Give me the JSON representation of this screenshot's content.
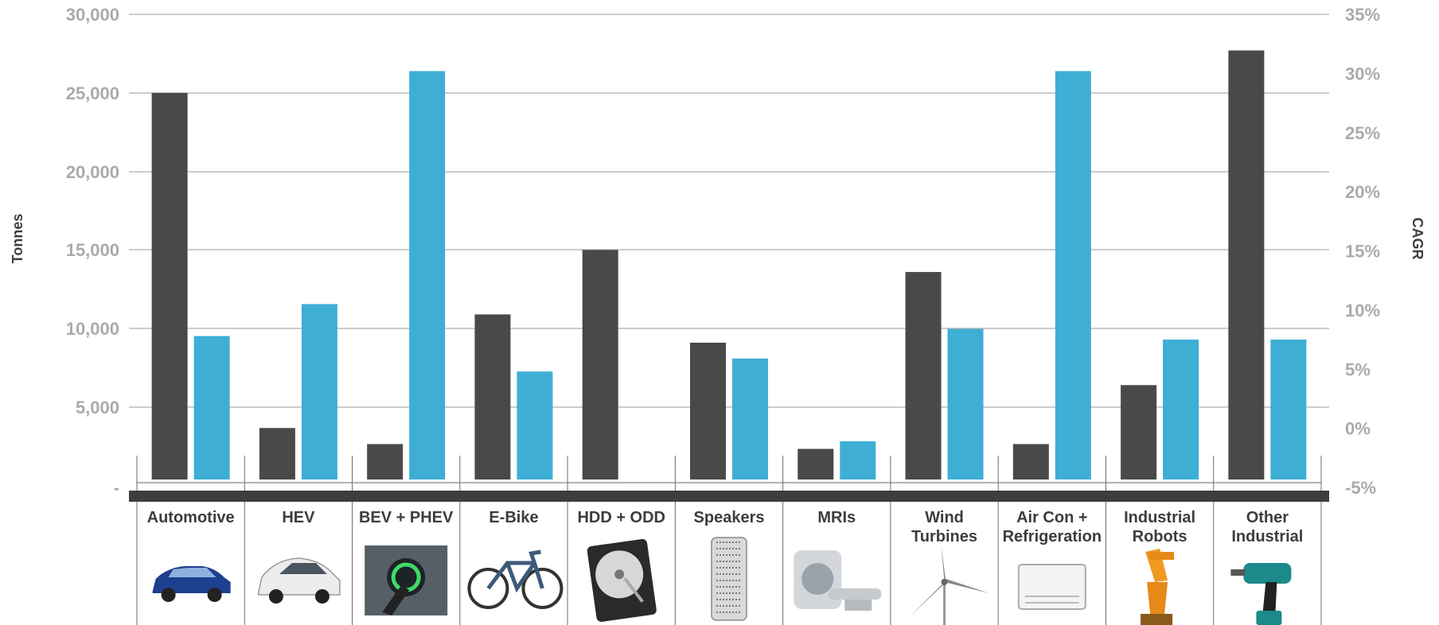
{
  "chart_data": {
    "type": "bar",
    "title": "",
    "ylabel": "Tonnes",
    "y2label": "CAGR",
    "ylim": [
      0,
      30000
    ],
    "y2lim": [
      -5,
      35
    ],
    "yticks": [
      "30,000",
      "25,000",
      "20,000",
      "15,000",
      "10,000",
      "5,000",
      "-"
    ],
    "y2ticks": [
      "35%",
      "30%",
      "25%",
      "20%",
      "15%",
      "10%",
      "5%",
      "0%",
      "-5%"
    ],
    "grid": true,
    "categories": [
      [
        "Automotive"
      ],
      [
        "HEV"
      ],
      [
        "BEV + PHEV"
      ],
      [
        "E-Bike"
      ],
      [
        "HDD + ODD"
      ],
      [
        "Speakers"
      ],
      [
        "MRIs"
      ],
      [
        "Wind",
        "Turbines"
      ],
      [
        "Air Con +",
        "Refrigeration"
      ],
      [
        "Industrial",
        "Robots"
      ],
      [
        "Other",
        "Industrial"
      ]
    ],
    "category_icons": [
      "car-icon",
      "hybrid-car-icon",
      "ev-charger-icon",
      "e-bike-icon",
      "hard-drive-icon",
      "speaker-icon",
      "mri-scanner-icon",
      "wind-turbine-icon",
      "air-conditioner-icon",
      "robot-arm-icon",
      "power-drill-icon"
    ],
    "series": [
      {
        "axis": "left",
        "color": "#4a4849",
        "values": [
          25000,
          3700,
          2700,
          10900,
          15000,
          9100,
          2400,
          13600,
          2700,
          6400,
          27700
        ]
      },
      {
        "axis": "right",
        "color": "#3eaed4",
        "values": [
          7.8,
          10.5,
          30.2,
          4.8,
          null,
          5.9,
          -1.1,
          8.4,
          30.2,
          7.5,
          7.5
        ]
      }
    ]
  }
}
